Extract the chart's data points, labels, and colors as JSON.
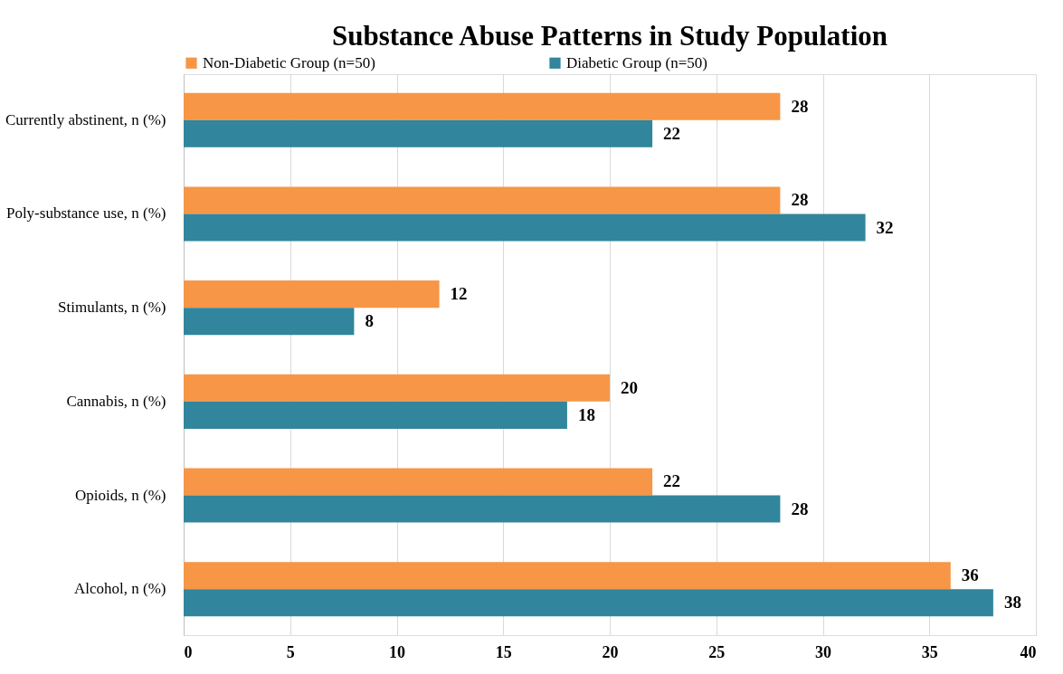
{
  "chart_data": {
    "type": "bar",
    "orientation": "horizontal",
    "title": "Substance Abuse Patterns in Study Population",
    "categories": [
      "Currently abstinent, n (%)",
      "Poly-substance use, n (%)",
      "Stimulants, n (%)",
      "Cannabis, n (%)",
      "Opioids, n (%)",
      "Alcohol, n (%)"
    ],
    "series": [
      {
        "name": "Non-Diabetic Group (n=50)",
        "color": "#f79646",
        "values": [
          28,
          28,
          12,
          20,
          22,
          36
        ]
      },
      {
        "name": "Diabetic Group (n=50)",
        "color": "#31859c",
        "values": [
          22,
          32,
          8,
          18,
          28,
          38
        ]
      }
    ],
    "xlim": [
      0,
      40
    ],
    "xticks": [
      0,
      5,
      10,
      15,
      20,
      25,
      30,
      35,
      40
    ],
    "grid": "x",
    "legend": "top",
    "data_labels": true
  }
}
